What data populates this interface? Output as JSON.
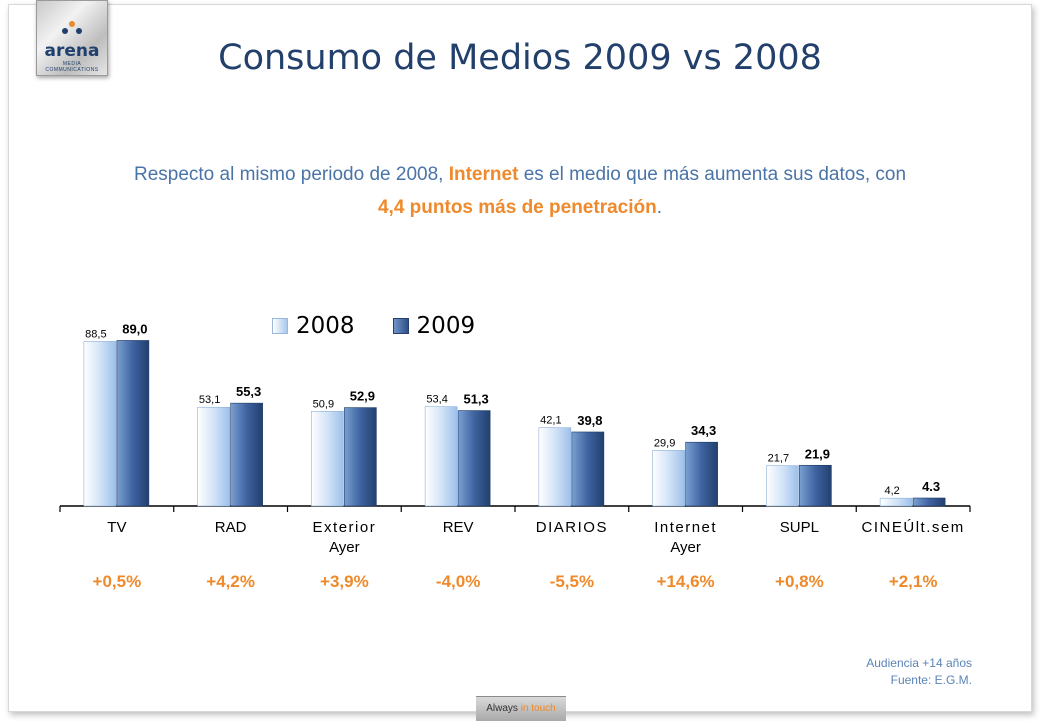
{
  "header": {
    "logo_text": "arena",
    "logo_subtext": "MEDIA COMMUNICATIONS",
    "title": "Consumo de Medios 2009 vs 2008"
  },
  "subtitle": {
    "part1": "Respecto al mismo periodo de 2008,",
    "highlight1": "Internet",
    "part2": "es el medio que más aumenta sus datos, con",
    "highlight2": "4,4 puntos más de penetración",
    "part3": "."
  },
  "chart_data": {
    "type": "bar",
    "categories": [
      "TV",
      "RAD",
      "Exterior Ayer",
      "REV",
      "DIARIOS",
      "Internet Ayer",
      "SUPL",
      "CINEÚlt.sem"
    ],
    "category_lines": [
      [
        "TV"
      ],
      [
        "RAD"
      ],
      [
        "Exterior",
        "Ayer"
      ],
      [
        "REV"
      ],
      [
        "DIARIOS"
      ],
      [
        "Internet",
        "Ayer"
      ],
      [
        "SUPL"
      ],
      [
        "CINEÚlt.sem"
      ]
    ],
    "series": [
      {
        "name": "2008",
        "values": [
          88.5,
          53.1,
          50.9,
          53.4,
          42.1,
          29.9,
          21.7,
          4.2
        ],
        "labels": [
          "88,5",
          "53,1",
          "50,9",
          "53,4",
          "42,1",
          "29,9",
          "21,7",
          "4,2"
        ],
        "color": "#a9c9ee"
      },
      {
        "name": "2009",
        "values": [
          89.0,
          55.3,
          52.9,
          51.3,
          39.8,
          34.3,
          21.9,
          4.3
        ],
        "labels": [
          "89,0",
          "55,3",
          "52,9",
          "51,3",
          "39,8",
          "34,3",
          "21,9",
          "4.3"
        ],
        "color": "#2d4f86"
      }
    ],
    "ylim": [
      0,
      100
    ],
    "grid": false,
    "legend": "top-center",
    "changes": [
      "+0,5%",
      "+4,2%",
      "+3,9%",
      "-4,0%",
      "-5,5%",
      "+14,6%",
      "+0,8%",
      "+2,1%"
    ]
  },
  "footer": {
    "audience": "Audiencia +14 años",
    "source": "Fuente: E.G.M."
  },
  "tagline": {
    "part1": "Always",
    "part2": "in touch"
  }
}
